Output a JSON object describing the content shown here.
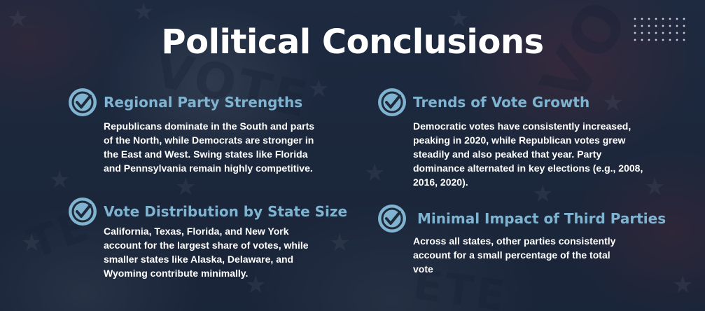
{
  "title": "Political Conclusions",
  "icon_name": "check-circle-icon",
  "accent_color": "#7fb3cf",
  "cards": [
    {
      "heading": "Regional Party Strengths",
      "body": "Republicans dominate in the South and parts of the North, while Democrats are stronger in the East and West. Swing states like Florida and Pennsylvania remain highly competitive."
    },
    {
      "heading": "Trends of Vote Growth",
      "body": "Democratic votes have consistently increased, peaking in 2020, while Republican votes grew steadily and also peaked that year. Party dominance alternated in key elections (e.g., 2008, 2016, 2020)."
    },
    {
      "heading": "Vote Distribution by State Size",
      "body": "California, Texas, Florida, and New York account for the largest share of votes, while smaller states like Alaska, Delaware, and Wyoming contribute minimally."
    },
    {
      "heading": "Minimal Impact of Third Parties",
      "body": "Across all states, other parties consistently account for a small percentage of the total vote"
    }
  ]
}
